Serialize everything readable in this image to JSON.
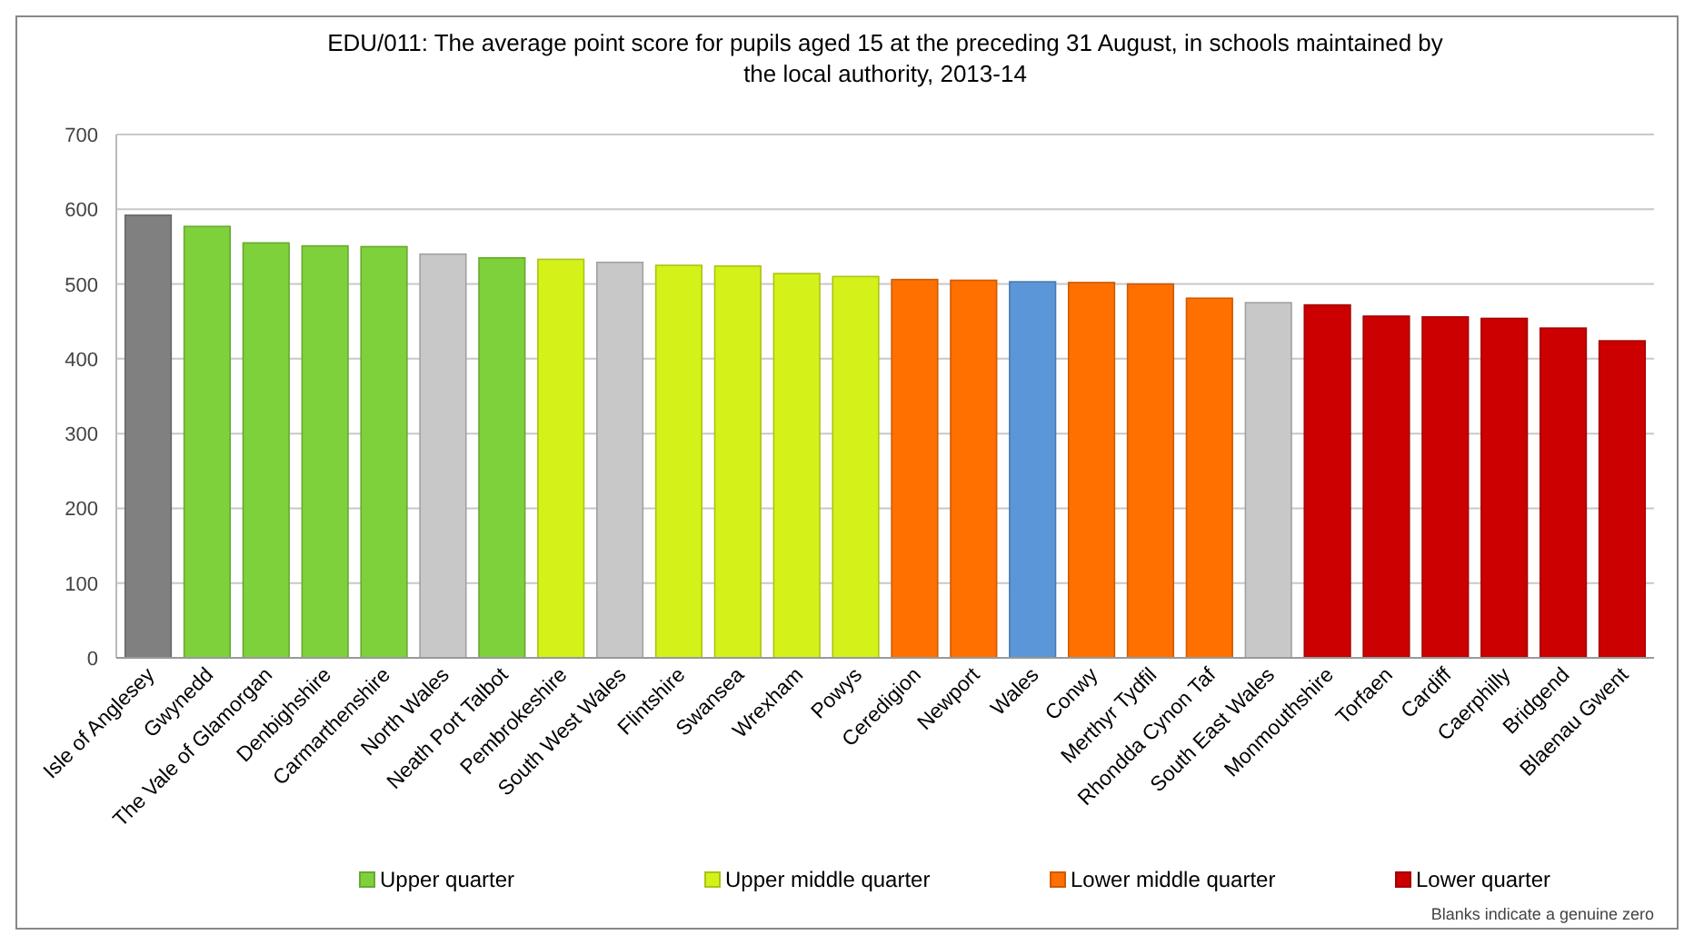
{
  "chart_data": {
    "type": "bar",
    "title": "EDU/011: The average point score for pupils aged 15 at the preceding 31 August, in schools maintained by the local authority, 2013-14",
    "categories": [
      "Isle of Anglesey",
      "Gwynedd",
      "The Vale of Glamorgan",
      "Denbighshire",
      "Carmarthenshire",
      "North Wales",
      "Neath Port Talbot",
      "Pembrokeshire",
      "South West Wales",
      "Flintshire",
      "Swansea",
      "Wrexham",
      "Powys",
      "Ceredigion",
      "Newport",
      "Wales",
      "Conwy",
      "Merthyr Tydfil",
      "Rhondda Cynon Taf",
      "South East Wales",
      "Monmouthshire",
      "Torfaen",
      "Cardiff",
      "Caerphilly",
      "Bridgend",
      "Blaenau Gwent"
    ],
    "series": [
      {
        "name": "Upper quarter",
        "color": "#7fd13b",
        "values": [
          null,
          577,
          555,
          551,
          550,
          null,
          535,
          null,
          null,
          null,
          null,
          null,
          null,
          null,
          null,
          null,
          null,
          null,
          null,
          null,
          null,
          null,
          null,
          null,
          null,
          null
        ]
      },
      {
        "name": "Upper middle quarter",
        "color": "#d4f21a",
        "values": [
          null,
          null,
          null,
          null,
          null,
          null,
          null,
          533,
          null,
          525,
          524,
          514,
          510,
          null,
          null,
          null,
          null,
          null,
          null,
          null,
          null,
          null,
          null,
          null,
          null,
          null
        ]
      },
      {
        "name": "Lower middle quarter",
        "color": "#ff7000",
        "values": [
          null,
          null,
          null,
          null,
          null,
          null,
          null,
          null,
          null,
          null,
          null,
          null,
          null,
          506,
          505,
          null,
          502,
          500,
          481,
          null,
          null,
          null,
          null,
          null,
          null,
          null
        ]
      },
      {
        "name": "Lower quarter",
        "color": "#cc0000",
        "values": [
          null,
          null,
          null,
          null,
          null,
          null,
          null,
          null,
          null,
          null,
          null,
          null,
          null,
          null,
          null,
          null,
          null,
          null,
          null,
          null,
          472,
          457,
          456,
          454,
          441,
          424
        ]
      },
      {
        "color": "#808080",
        "values": [
          592,
          null,
          null,
          null,
          null,
          null,
          null,
          null,
          null,
          null,
          null,
          null,
          null,
          null,
          null,
          null,
          null,
          null,
          null,
          null,
          null,
          null,
          null,
          null,
          null,
          null
        ]
      },
      {
        "color": "#c8c8c8",
        "values": [
          null,
          null,
          null,
          null,
          null,
          540,
          null,
          null,
          529,
          null,
          null,
          null,
          null,
          null,
          null,
          null,
          null,
          null,
          null,
          475,
          null,
          null,
          null,
          null,
          null,
          null
        ]
      },
      {
        "color": "#5b96d8",
        "values": [
          null,
          null,
          null,
          null,
          null,
          null,
          null,
          null,
          null,
          null,
          null,
          null,
          null,
          null,
          null,
          503,
          null,
          null,
          null,
          null,
          null,
          null,
          null,
          null,
          null,
          null
        ]
      }
    ],
    "ylim": [
      0,
      700
    ],
    "yticks": [
      0,
      100,
      200,
      300,
      400,
      500,
      600,
      700
    ],
    "grid": "y",
    "legend": "bottom",
    "annotations": [
      "Blanks indicate a genuine zero"
    ]
  }
}
